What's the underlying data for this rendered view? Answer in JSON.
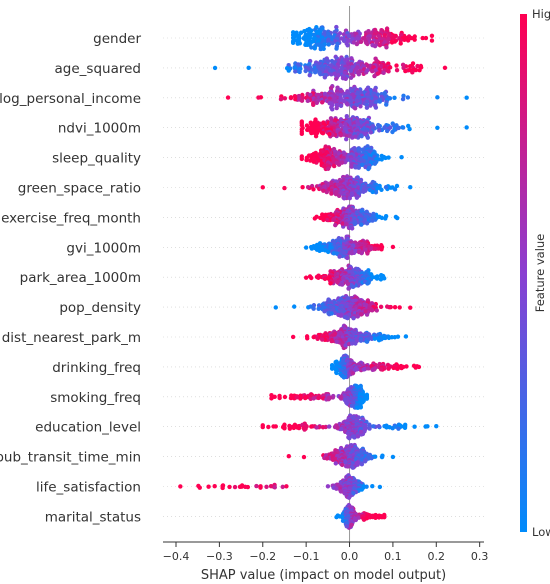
{
  "chart_data": {
    "type": "scatter",
    "subtype": "shap-beeswarm",
    "title": "",
    "xlabel": "SHAP value (impact on model output)",
    "ylabel": "",
    "xlim": [
      -0.43,
      0.31
    ],
    "xticks": [
      -0.4,
      -0.3,
      -0.2,
      -0.1,
      0.0,
      0.1,
      0.2,
      0.3
    ],
    "xtick_labels": [
      "−0.4",
      "−0.3",
      "−0.2",
      "−0.1",
      "0.0",
      "0.1",
      "0.2",
      "0.3"
    ],
    "zero_line": true,
    "grid": false,
    "colorbar": {
      "title": "Feature value",
      "high_label": "High",
      "low_label": "Low",
      "low_color": "#008bfb",
      "mid_color": "#8a3fd1",
      "high_color": "#ff0052",
      "placement": "right"
    },
    "features": [
      {
        "name": "gender",
        "range": [
          -0.13,
          0.19
        ],
        "neg_high": false,
        "clusters": [
          [
            -0.07,
            0.035,
            0.5
          ],
          [
            0.07,
            0.05,
            0.5
          ]
        ]
      },
      {
        "name": "age_squared",
        "range": [
          -0.31,
          0.22
        ],
        "neg_high": false,
        "clusters": [
          [
            -0.03,
            0.05,
            0.5
          ],
          [
            0.03,
            0.06,
            0.5
          ]
        ]
      },
      {
        "name": "log_personal_income",
        "range": [
          -0.28,
          0.27
        ],
        "neg_high": true,
        "clusters": [
          [
            -0.04,
            0.06,
            0.5
          ],
          [
            0.02,
            0.05,
            0.5
          ]
        ]
      },
      {
        "name": "ndvi_1000m",
        "range": [
          -0.11,
          0.27
        ],
        "neg_high": true,
        "clusters": [
          [
            -0.03,
            0.04,
            0.55
          ],
          [
            0.03,
            0.05,
            0.45
          ]
        ]
      },
      {
        "name": "sleep_quality",
        "range": [
          -0.11,
          0.12
        ],
        "neg_high": true,
        "clusters": [
          [
            -0.05,
            0.02,
            0.45
          ],
          [
            0.03,
            0.025,
            0.55
          ]
        ]
      },
      {
        "name": "green_space_ratio",
        "range": [
          -0.2,
          0.14
        ],
        "neg_high": true,
        "clusters": [
          [
            0.0,
            0.04,
            1.0
          ]
        ]
      },
      {
        "name": "exercise_freq_month",
        "range": [
          -0.08,
          0.11
        ],
        "neg_high": true,
        "clusters": [
          [
            0.0,
            0.03,
            1.0
          ]
        ]
      },
      {
        "name": "gvi_1000m",
        "range": [
          -0.1,
          0.1
        ],
        "neg_high": false,
        "clusters": [
          [
            -0.01,
            0.035,
            1.0
          ]
        ]
      },
      {
        "name": "park_area_1000m",
        "range": [
          -0.1,
          0.08
        ],
        "neg_high": true,
        "clusters": [
          [
            0.0,
            0.03,
            1.0
          ]
        ]
      },
      {
        "name": "pop_density",
        "range": [
          -0.17,
          0.14
        ],
        "neg_high": false,
        "clusters": [
          [
            0.0,
            0.035,
            1.0
          ]
        ]
      },
      {
        "name": "dist_nearest_park_m",
        "range": [
          -0.13,
          0.13
        ],
        "neg_high": true,
        "clusters": [
          [
            0.0,
            0.035,
            1.0
          ]
        ]
      },
      {
        "name": "drinking_freq",
        "range": [
          -0.04,
          0.16
        ],
        "neg_high": false,
        "clusters": [
          [
            -0.01,
            0.012,
            0.6
          ],
          [
            0.06,
            0.04,
            0.4
          ]
        ]
      },
      {
        "name": "smoking_freq",
        "range": [
          -0.18,
          0.04
        ],
        "neg_high": true,
        "clusters": [
          [
            0.01,
            0.012,
            0.7
          ],
          [
            -0.07,
            0.05,
            0.3
          ]
        ]
      },
      {
        "name": "education_level",
        "range": [
          -0.2,
          0.2
        ],
        "neg_high": true,
        "clusters": [
          [
            0.01,
            0.015,
            0.7
          ],
          [
            -0.09,
            0.05,
            0.2
          ],
          [
            0.1,
            0.04,
            0.1
          ]
        ]
      },
      {
        "name": "pub_transit_time_min",
        "range": [
          -0.14,
          0.1
        ],
        "neg_high": true,
        "clusters": [
          [
            0.0,
            0.025,
            1.0
          ]
        ]
      },
      {
        "name": "life_satisfaction",
        "range": [
          -0.39,
          0.07
        ],
        "neg_high": true,
        "clusters": [
          [
            0.0,
            0.015,
            0.9
          ],
          [
            -0.25,
            0.06,
            0.1
          ]
        ]
      },
      {
        "name": "marital_status",
        "range": [
          -0.03,
          0.08
        ],
        "neg_high": false,
        "clusters": [
          [
            0.0,
            0.008,
            0.7
          ],
          [
            0.04,
            0.02,
            0.3
          ]
        ]
      }
    ]
  }
}
